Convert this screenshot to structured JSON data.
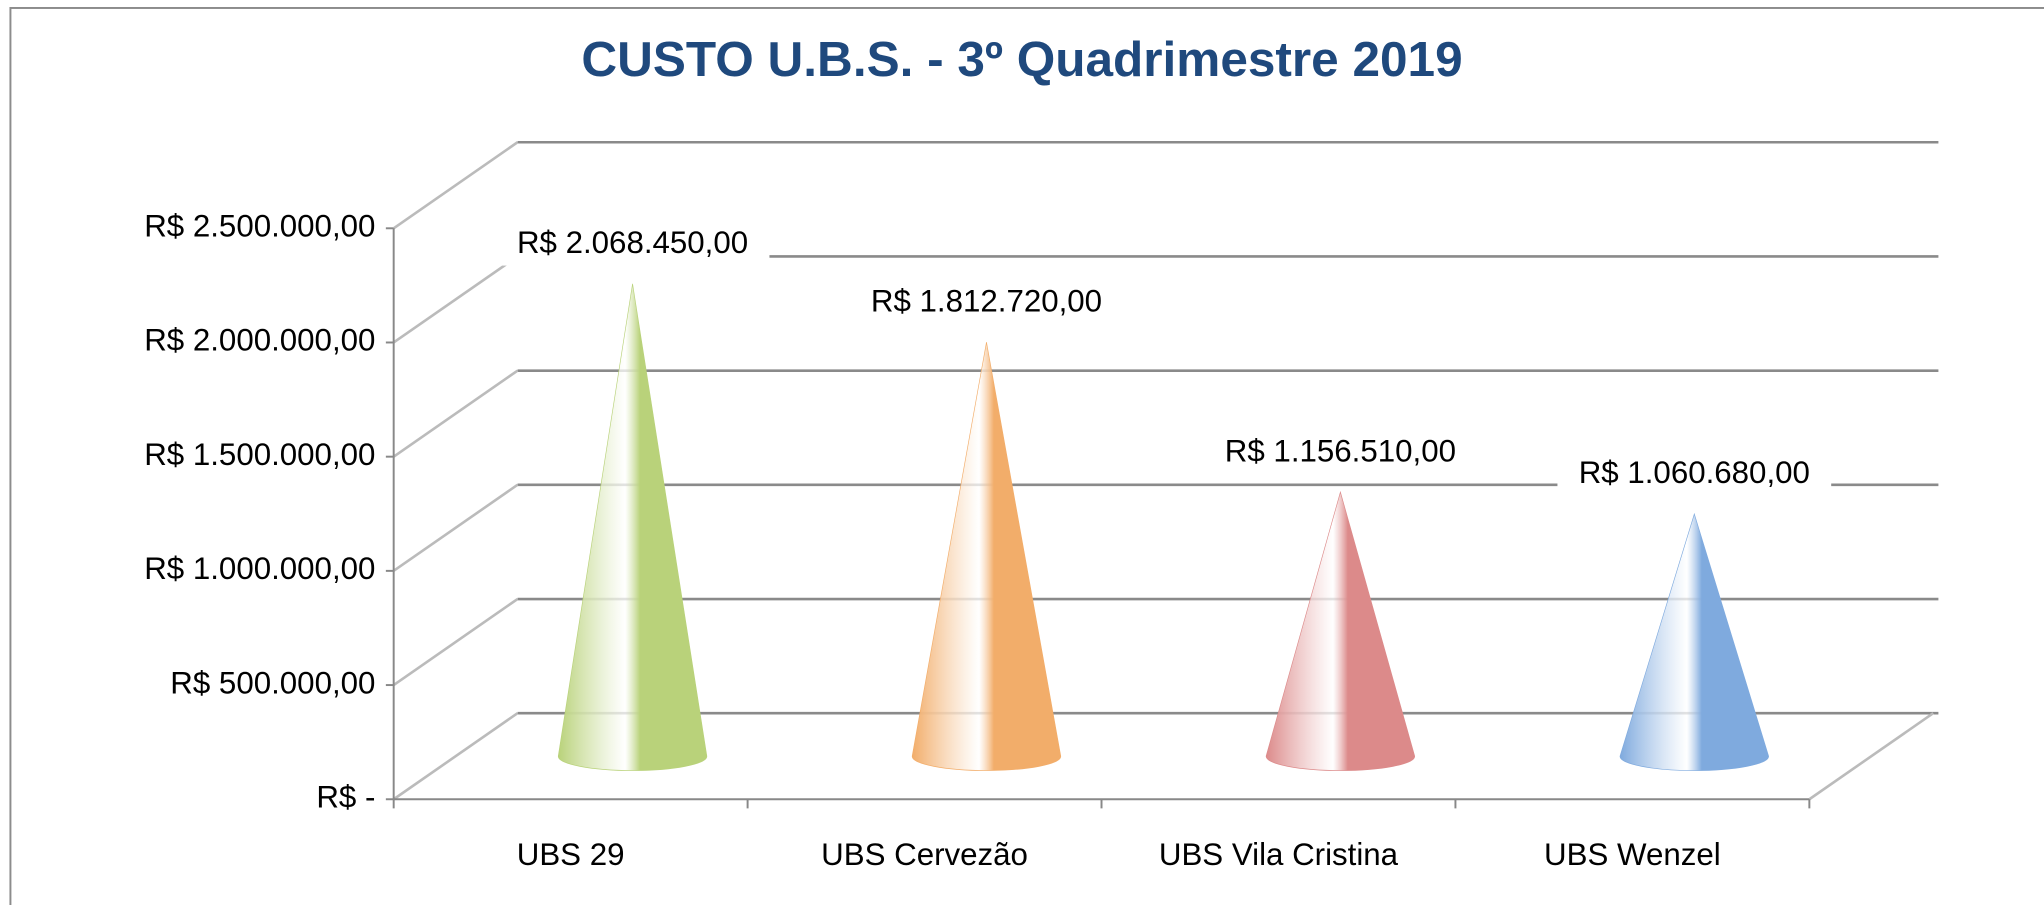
{
  "chart_data": {
    "type": "cone",
    "title": "CUSTO U.B.S. - 3º Quadrimestre 2019",
    "categories": [
      "UBS 29",
      "UBS Cervezão",
      "UBS Vila Cristina",
      "UBS Wenzel"
    ],
    "values": [
      2068450,
      1812720,
      1156510,
      1060680
    ],
    "value_labels": [
      "R$ 2.068.450,00",
      "R$ 1.812.720,00",
      "R$ 1.156.510,00",
      "R$ 1.060.680,00"
    ],
    "colors": [
      "#b9d27a",
      "#f2ad6a",
      "#dc8a8a",
      "#7faade"
    ],
    "ylim": [
      0,
      2500000
    ],
    "yticks": [
      {
        "value": 0,
        "label": "R$ -"
      },
      {
        "value": 500000,
        "label": "R$ 500.000,00"
      },
      {
        "value": 1000000,
        "label": "R$ 1.000.000,00"
      },
      {
        "value": 1500000,
        "label": "R$ 1.500.000,00"
      },
      {
        "value": 2000000,
        "label": "R$ 2.000.000,00"
      },
      {
        "value": 2500000,
        "label": "R$ 2.500.000,00"
      }
    ],
    "grid": true
  }
}
